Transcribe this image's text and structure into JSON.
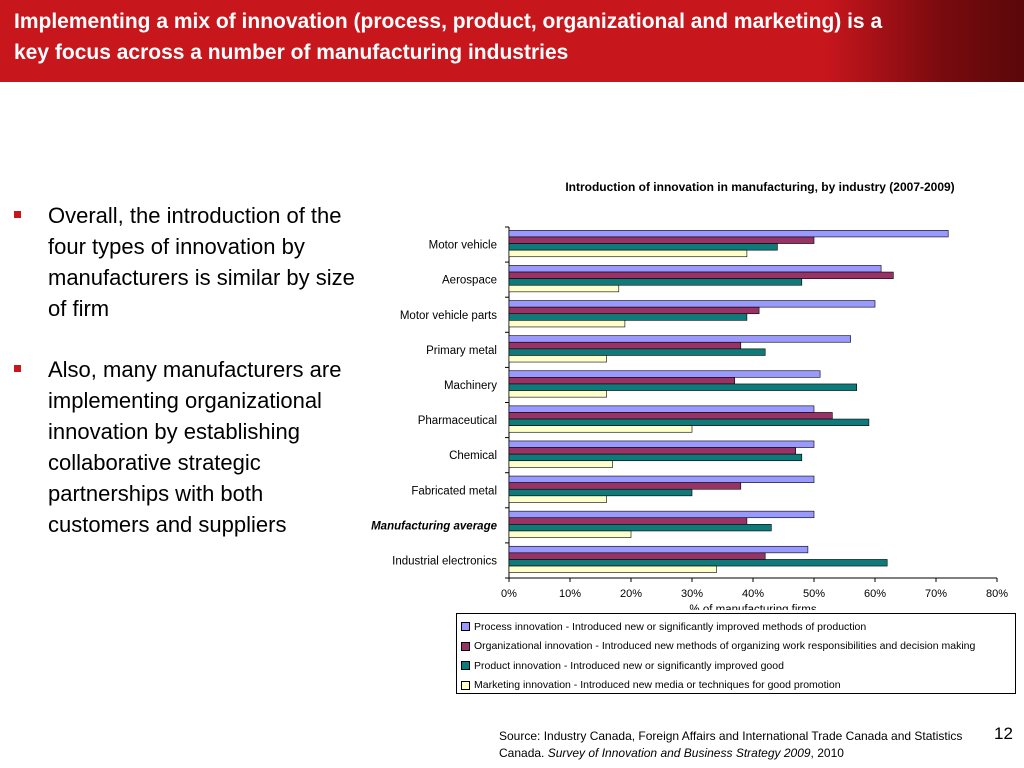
{
  "slide": {
    "title": "Implementing a mix of innovation (process, product, organizational and marketing) is a key focus across a number of manufacturing industries",
    "bullets": [
      "Overall, the introduction of the four types of innovation by manufacturers is similar by size of firm",
      "Also, many manufacturers are implementing organizational innovation by establishing collaborative strategic partnerships with both customers and suppliers"
    ],
    "source_prefix": "Source: Industry Canada, Foreign Affairs and International Trade Canada and Statistics Canada. ",
    "source_italic": "Survey of Innovation and Business Strategy 2009",
    "source_suffix": ", 2010",
    "page_number": "12"
  },
  "colors": {
    "banner": "#c8161d",
    "process": "#9999ff",
    "organizational": "#993366",
    "product": "#0f7a7a",
    "marketing": "#ffffcc"
  },
  "chart_data": {
    "type": "bar",
    "orientation": "horizontal",
    "title": "Introduction of innovation in manufacturing, by industry (2007-2009)",
    "xlabel": "% of manufacturing firms",
    "ylabel": "",
    "xlim": [
      0,
      80
    ],
    "xticks": [
      "0%",
      "10%",
      "20%",
      "30%",
      "40%",
      "50%",
      "60%",
      "70%",
      "80%"
    ],
    "categories": [
      "Motor vehicle",
      "Aerospace",
      "Motor vehicle parts",
      "Primary metal",
      "Machinery",
      "Pharmaceutical",
      "Chemical",
      "Fabricated metal",
      "Manufacturing average",
      "Industrial electronics"
    ],
    "emphasized_category": "Manufacturing average",
    "series": [
      {
        "name": "Process innovation - Introduced new or significantly improved methods of production",
        "color": "#9999ff",
        "values": [
          72,
          61,
          60,
          56,
          51,
          50,
          50,
          50,
          50,
          49
        ]
      },
      {
        "name": "Organizational innovation - Introduced new methods of organizing work responsibilities and decision making",
        "color": "#993366",
        "values": [
          50,
          63,
          41,
          38,
          37,
          53,
          47,
          38,
          39,
          42
        ]
      },
      {
        "name": "Product innovation - Introduced new or significantly improved good",
        "color": "#0f7a7a",
        "values": [
          44,
          48,
          39,
          42,
          57,
          59,
          48,
          30,
          43,
          62
        ]
      },
      {
        "name": "Marketing innovation - Introduced new media or techniques for good promotion",
        "color": "#ffffcc",
        "values": [
          39,
          18,
          19,
          16,
          16,
          30,
          17,
          16,
          20,
          34
        ]
      }
    ],
    "grid": false,
    "legend_position": "bottom"
  }
}
